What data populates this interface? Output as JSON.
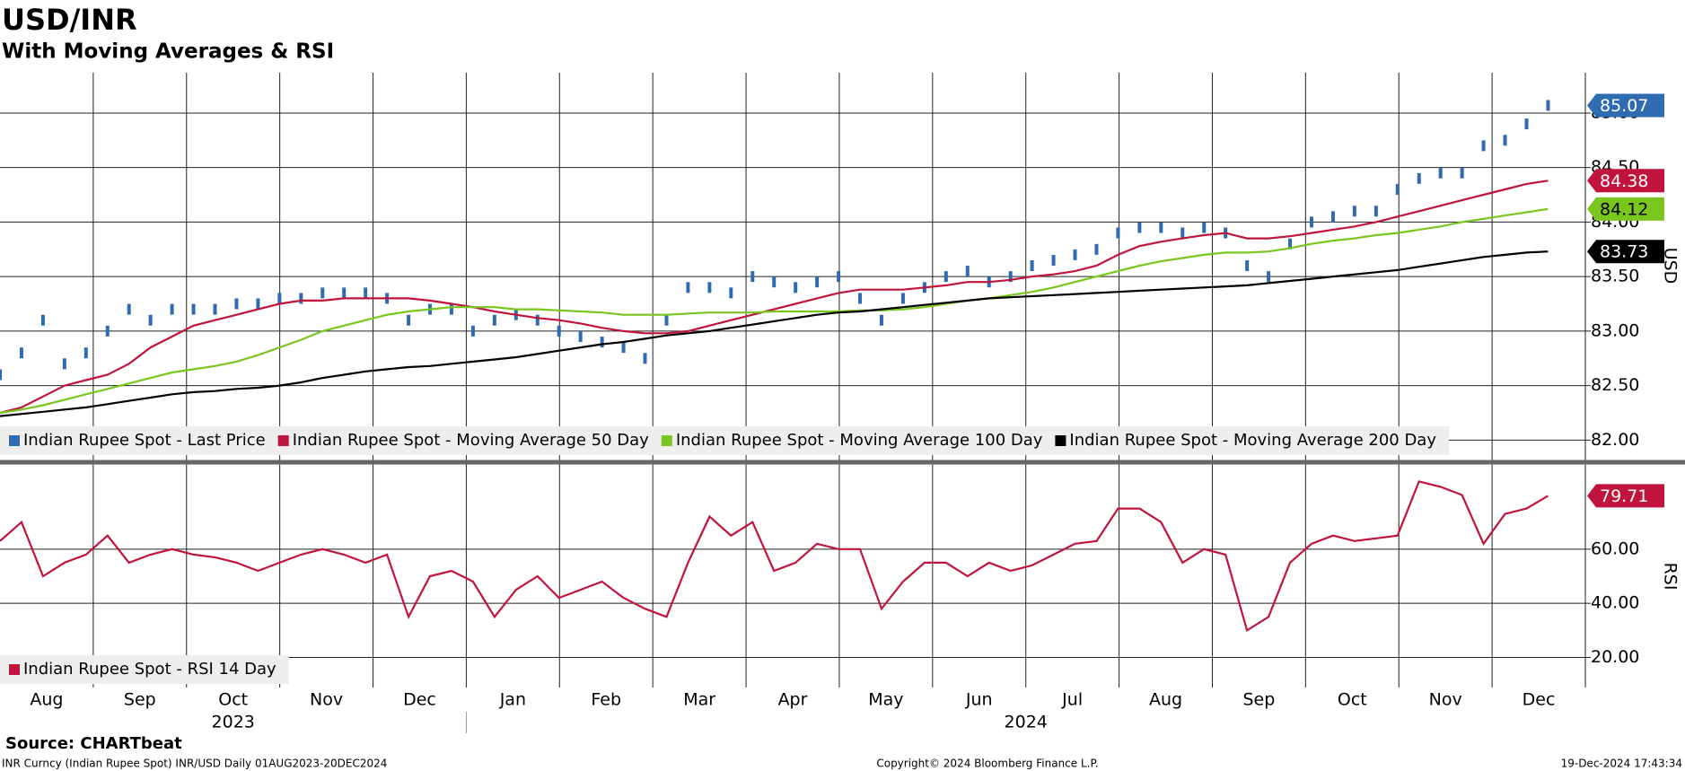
{
  "header": {
    "title": "USD/INR",
    "subtitle": "With Moving Averages & RSI"
  },
  "x_axis": {
    "months": [
      "Aug",
      "Sep",
      "Oct",
      "Nov",
      "Dec",
      "Jan",
      "Feb",
      "Mar",
      "Apr",
      "May",
      "Jun",
      "Jul",
      "Aug",
      "Sep",
      "Oct",
      "Nov",
      "Dec"
    ],
    "years": [
      "2023",
      "2024"
    ]
  },
  "chart_data": [
    {
      "type": "line",
      "ylabel": "USD",
      "ylim": [
        81.83,
        85.37
      ],
      "yticks": [
        {
          "value": 82,
          "label": "82.00"
        },
        {
          "value": 82.5,
          "label": "82.50"
        },
        {
          "value": 83,
          "label": "83.00"
        },
        {
          "value": 83.5,
          "label": "83.50"
        },
        {
          "value": 84,
          "label": "84.00"
        },
        {
          "value": 84.5,
          "label": "84.50"
        },
        {
          "value": 85,
          "label": "85.00"
        }
      ],
      "grid": true,
      "legend": "bottom-left",
      "series": [
        {
          "name": "Indian Rupee Spot - Last Price",
          "color": "#2e6bb0",
          "mark": "bar",
          "values": [
            82.6,
            82.8,
            83.1,
            82.7,
            82.8,
            83.0,
            83.2,
            83.1,
            83.2,
            83.2,
            83.2,
            83.25,
            83.25,
            83.3,
            83.3,
            83.35,
            83.35,
            83.35,
            83.3,
            83.1,
            83.2,
            83.2,
            83.0,
            83.1,
            83.15,
            83.1,
            83.0,
            82.95,
            82.9,
            82.85,
            82.75,
            83.1,
            83.4,
            83.4,
            83.35,
            83.5,
            83.45,
            83.4,
            83.45,
            83.5,
            83.3,
            83.1,
            83.3,
            83.4,
            83.5,
            83.55,
            83.45,
            83.5,
            83.6,
            83.65,
            83.7,
            83.75,
            83.9,
            83.95,
            83.95,
            83.9,
            83.95,
            83.9,
            83.6,
            83.5,
            83.8,
            84.0,
            84.05,
            84.1,
            84.1,
            84.3,
            84.4,
            84.45,
            84.45,
            84.7,
            84.75,
            84.9,
            85.07
          ]
        },
        {
          "name": "Indian Rupee Spot - Moving Average 50 Day",
          "color": "#c0143c",
          "mark": "line",
          "values": [
            82.25,
            82.3,
            82.4,
            82.5,
            82.55,
            82.6,
            82.7,
            82.85,
            82.95,
            83.05,
            83.1,
            83.15,
            83.2,
            83.25,
            83.28,
            83.28,
            83.3,
            83.3,
            83.3,
            83.3,
            83.28,
            83.25,
            83.22,
            83.18,
            83.15,
            83.12,
            83.1,
            83.07,
            83.03,
            83.0,
            82.98,
            82.98,
            83.0,
            83.05,
            83.1,
            83.15,
            83.2,
            83.25,
            83.3,
            83.35,
            83.38,
            83.38,
            83.38,
            83.4,
            83.42,
            83.45,
            83.45,
            83.47,
            83.5,
            83.52,
            83.55,
            83.6,
            83.7,
            83.78,
            83.82,
            83.85,
            83.88,
            83.9,
            83.85,
            83.85,
            83.87,
            83.9,
            83.93,
            83.96,
            84.0,
            84.05,
            84.1,
            84.15,
            84.2,
            84.25,
            84.3,
            84.35,
            84.38
          ]
        },
        {
          "name": "Indian Rupee Spot - Moving Average 100 Day",
          "color": "#7ac51e",
          "mark": "line",
          "values": [
            82.25,
            82.28,
            82.32,
            82.37,
            82.42,
            82.47,
            82.52,
            82.57,
            82.62,
            82.65,
            82.68,
            82.72,
            82.78,
            82.85,
            82.92,
            83.0,
            83.05,
            83.1,
            83.15,
            83.18,
            83.2,
            83.22,
            83.22,
            83.22,
            83.2,
            83.2,
            83.19,
            83.18,
            83.17,
            83.15,
            83.15,
            83.15,
            83.16,
            83.17,
            83.17,
            83.17,
            83.18,
            83.18,
            83.18,
            83.18,
            83.19,
            83.19,
            83.2,
            83.22,
            83.25,
            83.28,
            83.3,
            83.33,
            83.36,
            83.4,
            83.45,
            83.5,
            83.55,
            83.6,
            83.64,
            83.67,
            83.7,
            83.72,
            83.72,
            83.73,
            83.76,
            83.8,
            83.83,
            83.85,
            83.88,
            83.9,
            83.93,
            83.96,
            84.0,
            84.03,
            84.06,
            84.09,
            84.12
          ]
        },
        {
          "name": "Indian Rupee Spot - Moving Average 200 Day",
          "color": "#000000",
          "mark": "line",
          "values": [
            82.22,
            82.24,
            82.26,
            82.28,
            82.3,
            82.33,
            82.36,
            82.39,
            82.42,
            82.44,
            82.45,
            82.47,
            82.48,
            82.5,
            82.53,
            82.57,
            82.6,
            82.63,
            82.65,
            82.67,
            82.68,
            82.7,
            82.72,
            82.74,
            82.76,
            82.79,
            82.82,
            82.85,
            82.88,
            82.9,
            82.93,
            82.96,
            82.98,
            83.0,
            83.03,
            83.06,
            83.09,
            83.12,
            83.15,
            83.17,
            83.18,
            83.2,
            83.22,
            83.24,
            83.26,
            83.28,
            83.3,
            83.31,
            83.32,
            83.33,
            83.34,
            83.35,
            83.36,
            83.37,
            83.38,
            83.39,
            83.4,
            83.41,
            83.42,
            83.44,
            83.46,
            83.48,
            83.5,
            83.52,
            83.54,
            83.56,
            83.59,
            83.62,
            83.65,
            83.68,
            83.7,
            83.72,
            83.73
          ]
        }
      ]
    },
    {
      "type": "line",
      "ylabel": "RSI",
      "ylim": [
        8.9,
        91.1
      ],
      "yticks": [
        {
          "value": 20,
          "label": "20.00"
        },
        {
          "value": 40,
          "label": "40.00"
        },
        {
          "value": 60,
          "label": "60.00"
        }
      ],
      "grid": true,
      "legend": "bottom-left",
      "series": [
        {
          "name": "Indian Rupee Spot - RSI 14 Day",
          "color": "#c0143c",
          "mark": "line",
          "values": [
            63,
            70,
            50,
            55,
            58,
            65,
            55,
            58,
            60,
            58,
            57,
            55,
            52,
            55,
            58,
            60,
            58,
            55,
            58,
            35,
            50,
            52,
            48,
            35,
            45,
            50,
            42,
            45,
            48,
            42,
            38,
            35,
            55,
            72,
            65,
            70,
            52,
            55,
            62,
            60,
            60,
            38,
            48,
            55,
            55,
            50,
            55,
            52,
            54,
            58,
            62,
            63,
            75,
            75,
            70,
            55,
            60,
            58,
            30,
            35,
            55,
            62,
            65,
            63,
            64,
            65,
            85,
            83,
            80,
            62,
            73,
            75,
            79.71
          ]
        }
      ]
    }
  ],
  "footer": {
    "source": "Source: CHARTbeat",
    "ticker": "INR Curncy (Indian Rupee Spot) INR/USD  Daily 01AUG2023-20DEC2024",
    "copyright": "Copyright© 2024 Bloomberg Finance L.P.",
    "timestamp": "19-Dec-2024 17:43:34"
  }
}
